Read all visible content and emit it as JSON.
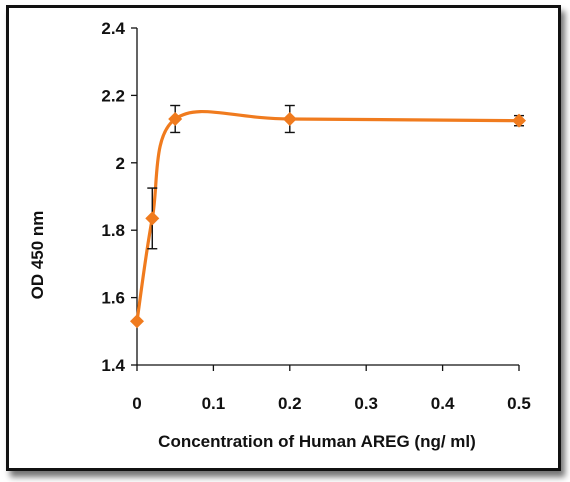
{
  "chart_data": {
    "type": "line",
    "title": "",
    "xlabel": "Concentration of Human AREG (ng/ ml)",
    "ylabel": "OD 450 nm",
    "xlim": [
      0,
      0.5
    ],
    "ylim": [
      1.4,
      2.4
    ],
    "xticks": [
      0,
      0.1,
      0.2,
      0.3,
      0.4,
      0.5
    ],
    "xtick_labels": [
      "0",
      "0.1",
      "0.2",
      "0.3",
      "0.4",
      "0.5"
    ],
    "yticks": [
      1.4,
      1.6,
      1.8,
      2.0,
      2.2,
      2.4
    ],
    "ytick_labels": [
      "1.4",
      "1.6",
      "1.8",
      "2",
      "2.2",
      "2.4"
    ],
    "grid": false,
    "legend": "none",
    "series": [
      {
        "color": "#f07b1e",
        "marker": "diamond",
        "smooth": true,
        "points": [
          {
            "x": 0,
            "y": 1.53,
            "err": 0
          },
          {
            "x": 0.02,
            "y": 1.835,
            "err": 0.09
          },
          {
            "x": 0.05,
            "y": 2.13,
            "err": 0.04
          },
          {
            "x": 0.2,
            "y": 2.13,
            "err": 0.04
          },
          {
            "x": 0.5,
            "y": 2.125,
            "err": 0.015
          }
        ]
      }
    ]
  }
}
